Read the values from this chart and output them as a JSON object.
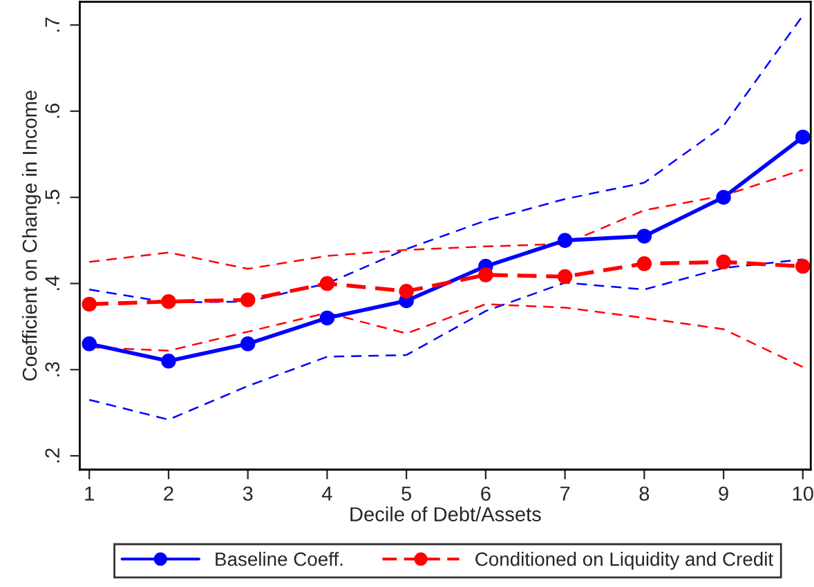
{
  "chart_data": {
    "type": "line",
    "xlabel": "Decile of Debt/Assets",
    "ylabel": "Coefficient on Change in Income",
    "x": [
      1,
      2,
      3,
      4,
      5,
      6,
      7,
      8,
      9,
      10
    ],
    "series": [
      {
        "color": "#0000ff",
        "line_style": "dashed",
        "marker": "none",
        "values": [
          0.393,
          0.378,
          0.379,
          0.4,
          0.44,
          0.473,
          0.498,
          0.517,
          0.583,
          0.711
        ]
      },
      {
        "color": "#0000ff",
        "line_style": "dashed",
        "marker": "none",
        "values": [
          0.265,
          0.242,
          0.281,
          0.315,
          0.317,
          0.368,
          0.401,
          0.393,
          0.418,
          0.428
        ]
      },
      {
        "color": "#ff0000",
        "line_style": "dashed",
        "marker": "none",
        "values": [
          0.425,
          0.436,
          0.417,
          0.432,
          0.439,
          0.443,
          0.446,
          0.485,
          0.502,
          0.532
        ]
      },
      {
        "color": "#ff0000",
        "line_style": "dashed",
        "marker": "none",
        "values": [
          0.326,
          0.322,
          0.344,
          0.366,
          0.342,
          0.376,
          0.372,
          0.36,
          0.347,
          0.303
        ]
      },
      {
        "name": "Baseline Coeff.",
        "color": "#0000ff",
        "line_style": "solid",
        "values": [
          0.33,
          0.31,
          0.33,
          0.36,
          0.38,
          0.42,
          0.45,
          0.455,
          0.5,
          0.57
        ]
      },
      {
        "name": "Conditioned on Liquidity and Credit",
        "color": "#ff0000",
        "line_style": "dashed",
        "values": [
          0.376,
          0.379,
          0.381,
          0.4,
          0.391,
          0.41,
          0.408,
          0.423,
          0.425,
          0.42
        ]
      }
    ],
    "xlim": [
      0.88,
      10.1
    ],
    "xticks": [
      1,
      2,
      3,
      4,
      5,
      6,
      7,
      8,
      9,
      10
    ],
    "ylim": [
      0.184,
      0.727
    ],
    "yticks": [
      {
        "value": 0.2,
        "label": ".2"
      },
      {
        "value": 0.3,
        "label": ".3"
      },
      {
        "value": 0.4,
        "label": ".4"
      },
      {
        "value": 0.5,
        "label": ".5"
      },
      {
        "value": 0.6,
        "label": ".6"
      },
      {
        "value": 0.7,
        "label": ".7"
      }
    ],
    "marker": "circle",
    "grid": false,
    "legend": "bottom"
  }
}
